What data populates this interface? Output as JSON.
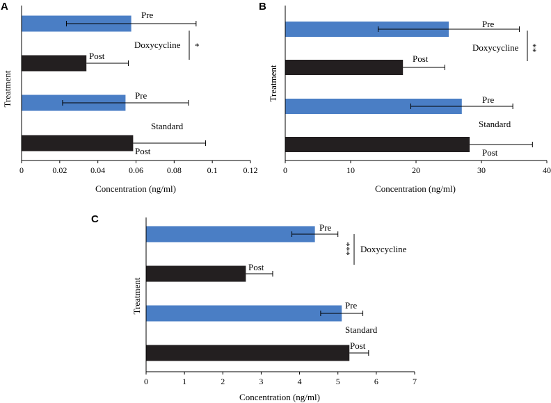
{
  "chart_data": [
    {
      "panel": "A",
      "type": "bar",
      "orientation": "horizontal",
      "xlabel": "Concentration (ng/ml)",
      "ylabel": "Treatment",
      "xlim": [
        0,
        0.12
      ],
      "xticks": [
        "0",
        "0.02",
        "0.04",
        "0.06",
        "0.08",
        "0.1",
        "0.12"
      ],
      "xtick_values": [
        0,
        0.02,
        0.04,
        0.06,
        0.08,
        0.1,
        0.12
      ],
      "bars": [
        {
          "label": "Pre",
          "group": "Doxycycline",
          "value": 0.0575,
          "err_low": 0.0235,
          "err_high": 0.0915,
          "color": "#4a7ec5"
        },
        {
          "label": "Post",
          "group": "Doxycycline",
          "value": 0.034,
          "err_low": 0.034,
          "err_high": 0.056,
          "color": "#231f20"
        },
        {
          "label": "Pre",
          "group": "Standard",
          "value": 0.0545,
          "err_low": 0.0215,
          "err_high": 0.0875,
          "color": "#4a7ec5"
        },
        {
          "label": "Post",
          "group": "Standard",
          "value": 0.0585,
          "err_low": 0.0585,
          "err_high": 0.0965,
          "color": "#231f20"
        }
      ],
      "groups": [
        "Doxycycline",
        "Standard"
      ],
      "significance": "*"
    },
    {
      "panel": "B",
      "type": "bar",
      "orientation": "horizontal",
      "xlabel": "Concentration (ng/ml)",
      "ylabel": "Treatment",
      "xlim": [
        0,
        40
      ],
      "xticks": [
        "0",
        "10",
        "20",
        "30",
        "40"
      ],
      "xtick_values": [
        0,
        10,
        20,
        30,
        40
      ],
      "bars": [
        {
          "label": "Pre",
          "group": "Doxycycline",
          "value": 25,
          "err_low": 14.2,
          "err_high": 35.8,
          "color": "#4a7ec5"
        },
        {
          "label": "Post",
          "group": "Doxycycline",
          "value": 18,
          "err_low": 18,
          "err_high": 24.4,
          "color": "#231f20"
        },
        {
          "label": "Pre",
          "group": "Standard",
          "value": 27,
          "err_low": 19.2,
          "err_high": 34.8,
          "color": "#4a7ec5"
        },
        {
          "label": "Post",
          "group": "Standard",
          "value": 28.2,
          "err_low": 28.2,
          "err_high": 37.8,
          "color": "#231f20"
        }
      ],
      "groups": [
        "Doxycycline",
        "Standard"
      ],
      "significance": "**"
    },
    {
      "panel": "C",
      "type": "bar",
      "orientation": "horizontal",
      "xlabel": "Concentration (ng/ml)",
      "ylabel": "Treatment",
      "xlim": [
        0,
        7
      ],
      "xticks": [
        "0",
        "1",
        "2",
        "3",
        "4",
        "5",
        "6",
        "7"
      ],
      "xtick_values": [
        0,
        1,
        2,
        3,
        4,
        5,
        6,
        7
      ],
      "bars": [
        {
          "label": "Pre",
          "group": "Doxycycline",
          "value": 4.4,
          "err_low": 3.8,
          "err_high": 5.0,
          "color": "#4a7ec5"
        },
        {
          "label": "Post",
          "group": "Doxycycline",
          "value": 2.6,
          "err_low": 2.6,
          "err_high": 3.3,
          "color": "#231f20"
        },
        {
          "label": "Pre",
          "group": "Standard",
          "value": 5.1,
          "err_low": 4.55,
          "err_high": 5.65,
          "color": "#4a7ec5"
        },
        {
          "label": "Post",
          "group": "Standard",
          "value": 5.3,
          "err_low": 5.3,
          "err_high": 5.8,
          "color": "#231f20"
        }
      ],
      "groups": [
        "Doxycycline",
        "Standard"
      ],
      "significance": "***"
    }
  ]
}
